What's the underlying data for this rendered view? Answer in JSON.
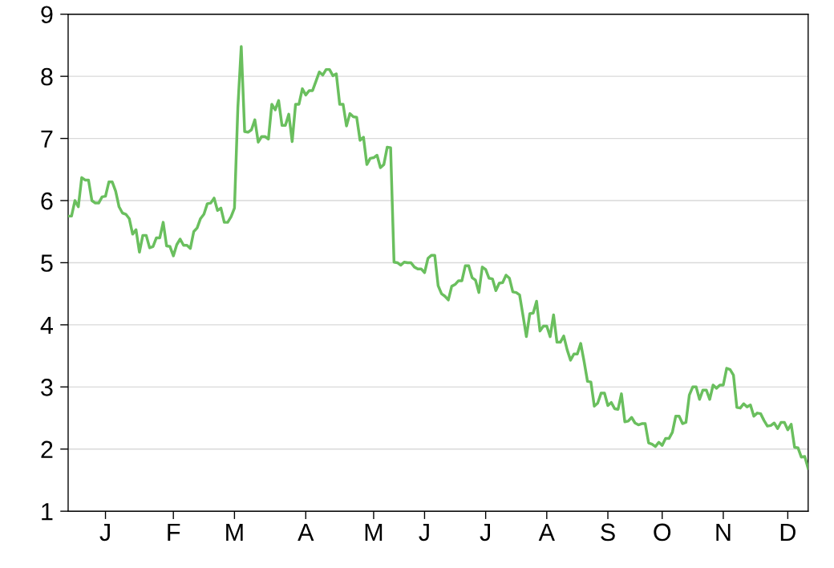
{
  "chart_data": {
    "type": "line",
    "grid": "y",
    "categories": [
      null,
      null,
      null,
      null,
      null,
      null,
      null,
      null,
      null,
      null,
      null,
      "J",
      null,
      null,
      null,
      null,
      null,
      null,
      null,
      null,
      null,
      null,
      null,
      null,
      null,
      null,
      null,
      null,
      null,
      null,
      null,
      "F",
      null,
      null,
      null,
      null,
      null,
      null,
      null,
      null,
      null,
      null,
      null,
      null,
      null,
      null,
      null,
      null,
      null,
      "M",
      null,
      null,
      null,
      null,
      null,
      null,
      null,
      null,
      null,
      null,
      null,
      null,
      null,
      null,
      null,
      null,
      null,
      null,
      null,
      null,
      "A",
      null,
      null,
      null,
      null,
      null,
      null,
      null,
      null,
      null,
      null,
      null,
      null,
      null,
      null,
      null,
      null,
      null,
      null,
      null,
      "M",
      null,
      null,
      null,
      null,
      null,
      null,
      null,
      null,
      null,
      null,
      null,
      null,
      null,
      null,
      "J",
      null,
      null,
      null,
      null,
      null,
      null,
      null,
      null,
      null,
      null,
      null,
      null,
      null,
      null,
      null,
      null,
      null,
      "J",
      null,
      null,
      null,
      null,
      null,
      null,
      null,
      null,
      null,
      null,
      null,
      null,
      null,
      null,
      null,
      null,
      null,
      "A",
      null,
      null,
      null,
      null,
      null,
      null,
      null,
      null,
      null,
      null,
      null,
      null,
      null,
      null,
      null,
      null,
      null,
      "S",
      null,
      null,
      null,
      null,
      null,
      null,
      null,
      null,
      null,
      null,
      null,
      null,
      null,
      null,
      null,
      "O",
      null,
      null,
      null,
      null,
      null,
      null,
      null,
      null,
      null,
      null,
      null,
      null,
      null,
      null,
      null,
      null,
      null,
      "N",
      null,
      null,
      null,
      null,
      null,
      null,
      null,
      null,
      null,
      null,
      null,
      null,
      null,
      null,
      null,
      null,
      null,
      null,
      "D",
      null,
      null,
      null,
      null,
      null,
      null
    ],
    "series": [
      {
        "color": "#6abf5e",
        "values": [
          5.75,
          5.75,
          6.0,
          5.9,
          6.37,
          6.33,
          6.33,
          6.0,
          5.96,
          5.96,
          6.06,
          6.07,
          6.3,
          6.3,
          6.15,
          5.9,
          5.8,
          5.78,
          5.71,
          5.46,
          5.53,
          5.17,
          5.44,
          5.44,
          5.24,
          5.26,
          5.4,
          5.4,
          5.65,
          5.27,
          5.26,
          5.11,
          5.29,
          5.38,
          5.28,
          5.28,
          5.23,
          5.5,
          5.56,
          5.71,
          5.78,
          5.95,
          5.96,
          6.04,
          5.84,
          5.88,
          5.65,
          5.65,
          5.74,
          5.88,
          7.5,
          8.48,
          7.11,
          7.1,
          7.14,
          7.3,
          6.94,
          7.03,
          7.03,
          6.99,
          7.55,
          7.46,
          7.61,
          7.21,
          7.21,
          7.39,
          6.95,
          7.55,
          7.55,
          7.8,
          7.7,
          7.77,
          7.77,
          7.92,
          8.07,
          8.02,
          8.11,
          8.11,
          8.01,
          8.04,
          7.55,
          7.55,
          7.2,
          7.4,
          7.35,
          7.34,
          6.97,
          7.02,
          6.58,
          6.68,
          6.69,
          6.73,
          6.53,
          6.58,
          6.86,
          6.85,
          5.01,
          5.0,
          4.96,
          5.01,
          5.0,
          5.0,
          4.93,
          4.9,
          4.9,
          4.84,
          5.07,
          5.12,
          5.12,
          4.63,
          4.5,
          4.46,
          4.4,
          4.62,
          4.65,
          4.71,
          4.71,
          4.95,
          4.95,
          4.76,
          4.72,
          4.52,
          4.93,
          4.89,
          4.75,
          4.74,
          4.55,
          4.67,
          4.68,
          4.8,
          4.75,
          4.53,
          4.52,
          4.48,
          4.15,
          3.81,
          4.18,
          4.19,
          4.38,
          3.9,
          3.98,
          3.98,
          3.81,
          4.16,
          3.72,
          3.72,
          3.82,
          3.6,
          3.43,
          3.53,
          3.53,
          3.7,
          3.41,
          3.09,
          3.08,
          2.69,
          2.74,
          2.9,
          2.9,
          2.7,
          2.75,
          2.65,
          2.64,
          2.89,
          2.44,
          2.45,
          2.51,
          2.42,
          2.39,
          2.41,
          2.41,
          2.1,
          2.08,
          2.04,
          2.11,
          2.06,
          2.17,
          2.17,
          2.27,
          2.53,
          2.53,
          2.41,
          2.43,
          2.87,
          3.0,
          3.0,
          2.8,
          2.95,
          2.95,
          2.8,
          3.03,
          2.98,
          3.03,
          3.03,
          3.3,
          3.28,
          3.19,
          2.67,
          2.66,
          2.73,
          2.68,
          2.71,
          2.53,
          2.58,
          2.57,
          2.46,
          2.37,
          2.38,
          2.42,
          2.33,
          2.43,
          2.43,
          2.31,
          2.4,
          2.03,
          2.02,
          1.87,
          1.88,
          1.69
        ]
      }
    ],
    "ylim": [
      1,
      9
    ],
    "yticks": [
      1,
      2,
      3,
      4,
      5,
      6,
      7,
      8,
      9
    ]
  }
}
